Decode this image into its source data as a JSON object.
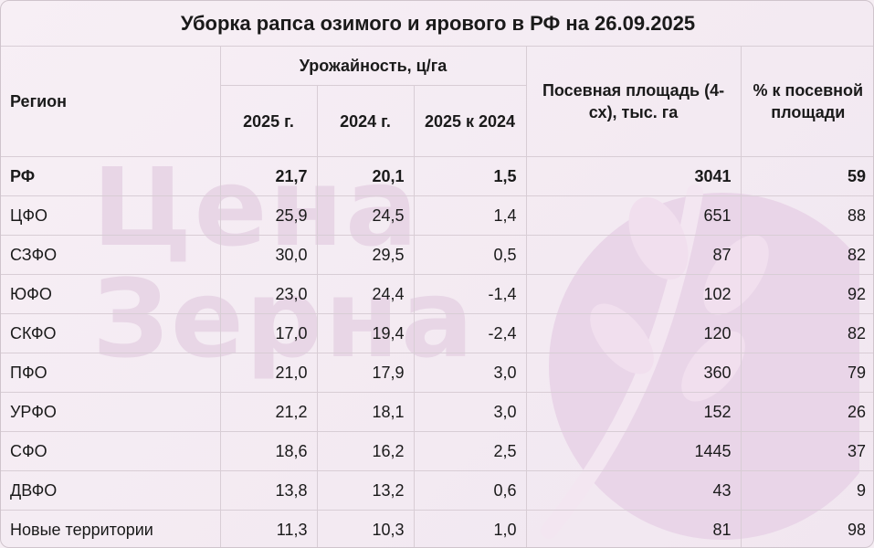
{
  "title": "Уборка рапса озимого и ярового в РФ на 26.09.2025",
  "watermark": {
    "line1": "Цена",
    "line2": "Зерна"
  },
  "headers": {
    "region": "Регион",
    "yield_group": "Урожайность, ц/га",
    "y2025": "2025 г.",
    "y2024": "2024 г.",
    "diff": "2025 к 2024",
    "area": "Посевная площадь (4-сх), тыс. га",
    "percent": "% к посевной площади"
  },
  "rows": [
    {
      "region": "РФ",
      "y2025": "21,7",
      "y2024": "20,1",
      "diff": "1,5",
      "area": "3041",
      "percent": "59"
    },
    {
      "region": "ЦФО",
      "y2025": "25,9",
      "y2024": "24,5",
      "diff": "1,4",
      "area": "651",
      "percent": "88"
    },
    {
      "region": "СЗФО",
      "y2025": "30,0",
      "y2024": "29,5",
      "diff": "0,5",
      "area": "87",
      "percent": "82"
    },
    {
      "region": "ЮФО",
      "y2025": "23,0",
      "y2024": "24,4",
      "diff": "-1,4",
      "area": "102",
      "percent": "92"
    },
    {
      "region": "СКФО",
      "y2025": "17,0",
      "y2024": "19,4",
      "diff": "-2,4",
      "area": "120",
      "percent": "82"
    },
    {
      "region": "ПФО",
      "y2025": "21,0",
      "y2024": "17,9",
      "diff": "3,0",
      "area": "360",
      "percent": "79"
    },
    {
      "region": "УРФО",
      "y2025": "21,2",
      "y2024": "18,1",
      "diff": "3,0",
      "area": "152",
      "percent": "26"
    },
    {
      "region": "СФО",
      "y2025": "18,6",
      "y2024": "16,2",
      "diff": "2,5",
      "area": "1445",
      "percent": "37"
    },
    {
      "region": "ДВФО",
      "y2025": "13,8",
      "y2024": "13,2",
      "diff": "0,6",
      "area": "43",
      "percent": "9"
    },
    {
      "region": "Новые территории",
      "y2025": "11,3",
      "y2024": "10,3",
      "diff": "1,0",
      "area": "81",
      "percent": "98"
    }
  ]
}
